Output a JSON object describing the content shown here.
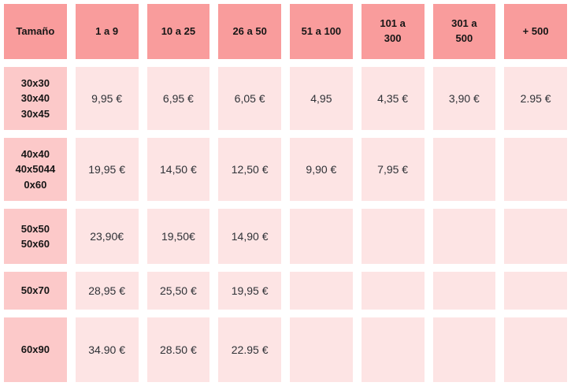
{
  "table": {
    "header": [
      "Tamaño",
      "1 a 9",
      "10 a 25",
      "26 a 50",
      "51 a 100",
      "101 a\n300",
      "301 a\n500",
      "+ 500"
    ],
    "rows": [
      {
        "size": "30x30\n30x40\n30x45",
        "prices": [
          "9,95 €",
          "6,95 €",
          "6,05 €",
          "4,95",
          "4,35 €",
          "3,90 €",
          "2.95 €"
        ]
      },
      {
        "size": "40x40\n40x5044\n0x60",
        "prices": [
          "19,95 €",
          "14,50 €",
          "12,50 €",
          "9,90 €",
          "7,95 €",
          "",
          ""
        ]
      },
      {
        "size": "50x50\n50x60",
        "prices": [
          "23,90€",
          "19,50€",
          "14,90 €",
          "",
          "",
          "",
          ""
        ]
      },
      {
        "size": "50x70",
        "prices": [
          "28,95 €",
          "25,50 €",
          "19,95 €",
          "",
          "",
          "",
          ""
        ]
      },
      {
        "size": "60x90",
        "prices": [
          "34.90 €",
          "28.50 €",
          "22.95 €",
          "",
          "",
          "",
          ""
        ]
      }
    ]
  },
  "colors": {
    "header_bg": "#f99c9c",
    "size_bg": "#fcc9c9",
    "price_bg": "#fde4e4",
    "header_text": "#161616",
    "price_text": "#2f3237",
    "background": "#ffffff"
  }
}
